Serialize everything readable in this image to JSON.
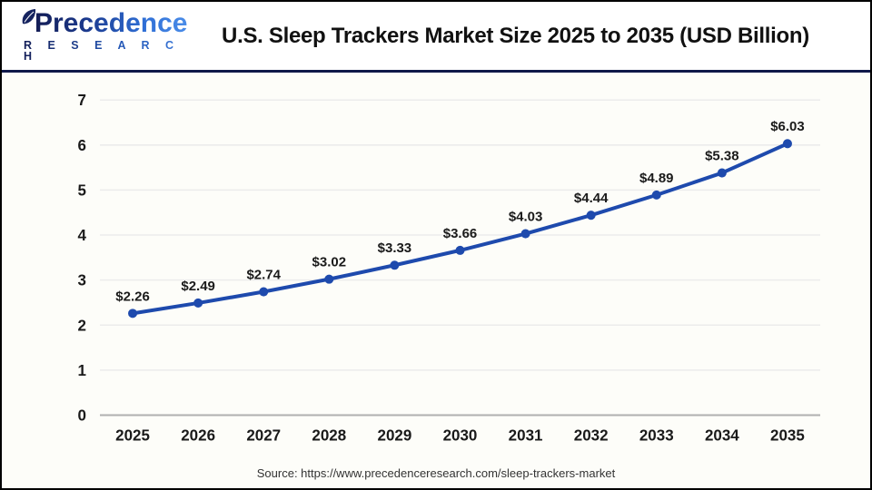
{
  "header": {
    "logo_name": "Precedence",
    "logo_sub": "R E S E A R C H",
    "title": "U.S. Sleep Trackers Market Size 2025 to 2035 (USD Billion)"
  },
  "chart_data": {
    "type": "line",
    "title": "U.S. Sleep Trackers Market Size 2025 to 2035 (USD Billion)",
    "categories": [
      "2025",
      "2026",
      "2027",
      "2028",
      "2029",
      "2030",
      "2031",
      "2032",
      "2033",
      "2034",
      "2035"
    ],
    "values": [
      2.26,
      2.49,
      2.74,
      3.02,
      3.33,
      3.66,
      4.03,
      4.44,
      4.89,
      5.38,
      6.03
    ],
    "point_labels": [
      "$2.26",
      "$2.49",
      "$2.74",
      "$3.02",
      "$3.33",
      "$3.66",
      "$4.03",
      "$4.44",
      "$4.89",
      "$5.38",
      "$6.03"
    ],
    "xlabel": "",
    "ylabel": "",
    "ylim": [
      0,
      7
    ],
    "ytick_step": 1,
    "grid": true,
    "legend": "none",
    "line_color": "#1e4aad",
    "marker": "circle"
  },
  "colors": {
    "grid": "#ececec",
    "axis": "#b0b0b0",
    "tick_label": "#1a1a1a",
    "data_label": "#1a1a1a",
    "chart_background": "#fdfdf9",
    "separator": "#10194a"
  },
  "footer": {
    "source": "Source: https://www.precedenceresearch.com/sleep-trackers-market"
  }
}
